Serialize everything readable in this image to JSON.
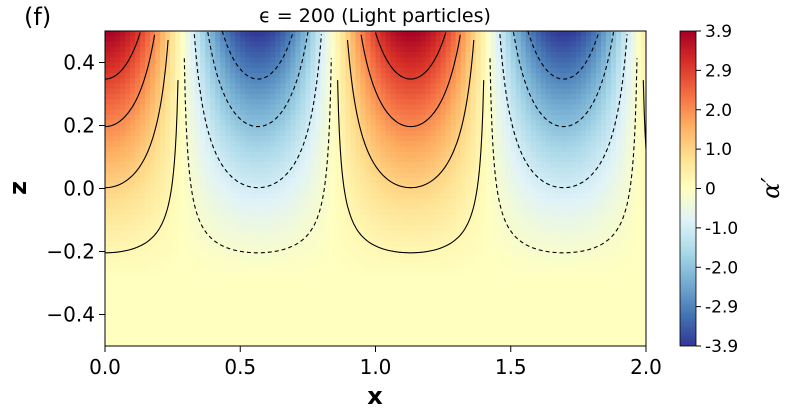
{
  "chart_data": {
    "type": "heatmap",
    "panel_label": "(f)",
    "title": "ϵ = 200 (Light particles)",
    "xlabel": "x",
    "ylabel": "z",
    "xlim": [
      0.0,
      2.0
    ],
    "ylim": [
      -0.5,
      0.5
    ],
    "x_ticks": [
      0.0,
      0.5,
      1.0,
      1.5,
      2.0
    ],
    "x_tick_labels": [
      "0.0",
      "0.5",
      "1.0",
      "1.5",
      "2.0"
    ],
    "y_ticks": [
      0.4,
      0.2,
      0.0,
      -0.2,
      -0.4
    ],
    "y_tick_labels": [
      "0.4",
      "0.2",
      "0.0",
      "−0.2",
      "−0.4"
    ],
    "colorbar": {
      "label": "α′",
      "min": -3.9,
      "max": 3.9,
      "ticks": [
        3.9,
        2.9,
        2.0,
        1.0,
        0,
        -1.0,
        -2.0,
        -2.9,
        -3.9
      ],
      "tick_labels": [
        "3.9",
        "2.9",
        "2.0",
        "1.0",
        "0",
        "-1.0",
        "-2.0",
        "-2.9",
        "-3.9"
      ],
      "colormap": "RdYlBu_r"
    },
    "field": {
      "description": "Amplitude follows cos(2*pi*x/1.13), largest at z = 0.5 and decaying toward z = -0.3",
      "wavelength": 1.13,
      "peak_value": 3.9,
      "cell_centers_x": [
        0.0,
        0.57,
        1.13,
        1.7
      ],
      "cell_signs": [
        1,
        -1,
        1,
        -1
      ]
    },
    "contour_levels": [
      -2.9,
      -2.0,
      -1.0,
      -0.2,
      0.2,
      1.0,
      2.0,
      2.9
    ]
  }
}
